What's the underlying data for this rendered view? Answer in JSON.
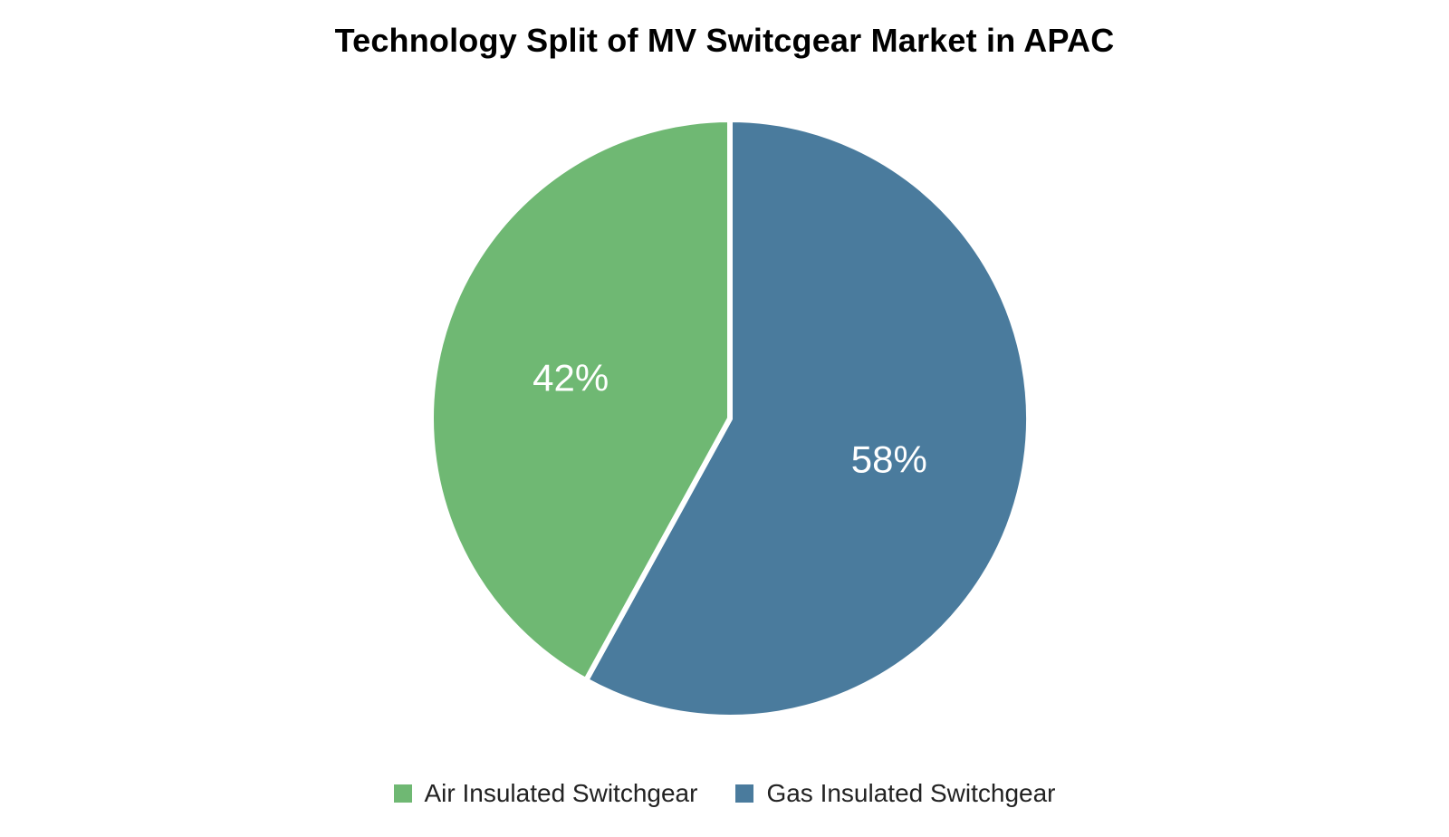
{
  "chart_data": {
    "type": "pie",
    "title": "Technology Split of MV Switcgear Market in APAC",
    "categories": [
      "Air Insulated Switchgear",
      "Gas Insulated Switchgear"
    ],
    "values": [
      42,
      58
    ],
    "labels": [
      "42%",
      "58%"
    ],
    "colors": [
      "#6fb873",
      "#4a7b9d"
    ],
    "legend_position": "bottom"
  }
}
